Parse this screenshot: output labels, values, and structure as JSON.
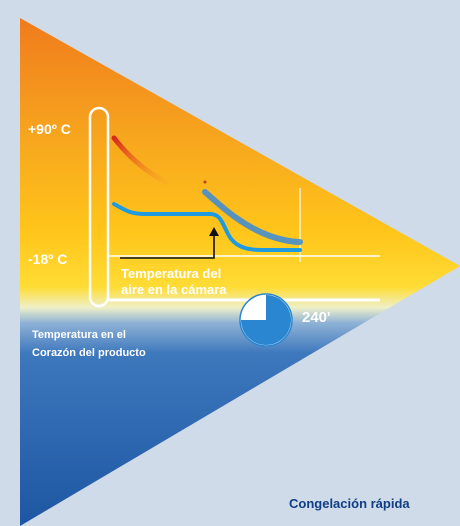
{
  "diagram": {
    "temp_high_label": "+90º C",
    "temp_low_label": "-18º C",
    "air_label_line1": "Temperatura del",
    "air_label_line2": "aire en la cámara",
    "time_label": "240'",
    "core_label_line1": "Temperatura en el",
    "core_label_line2": "Corazón del producto",
    "caption": "Congelación rápida",
    "clock_fill_fraction": 0.25
  },
  "colors": {
    "background": "#cfdbe9",
    "triangle_top": "#f07b1c",
    "triangle_mid": "#ffc21a",
    "triangle_bottom": "#1f5da8",
    "curve_cool": "#1e9be0",
    "curve_hot": "#e0301e",
    "line_white": "#ffffff",
    "caption": "#0f3e86"
  }
}
